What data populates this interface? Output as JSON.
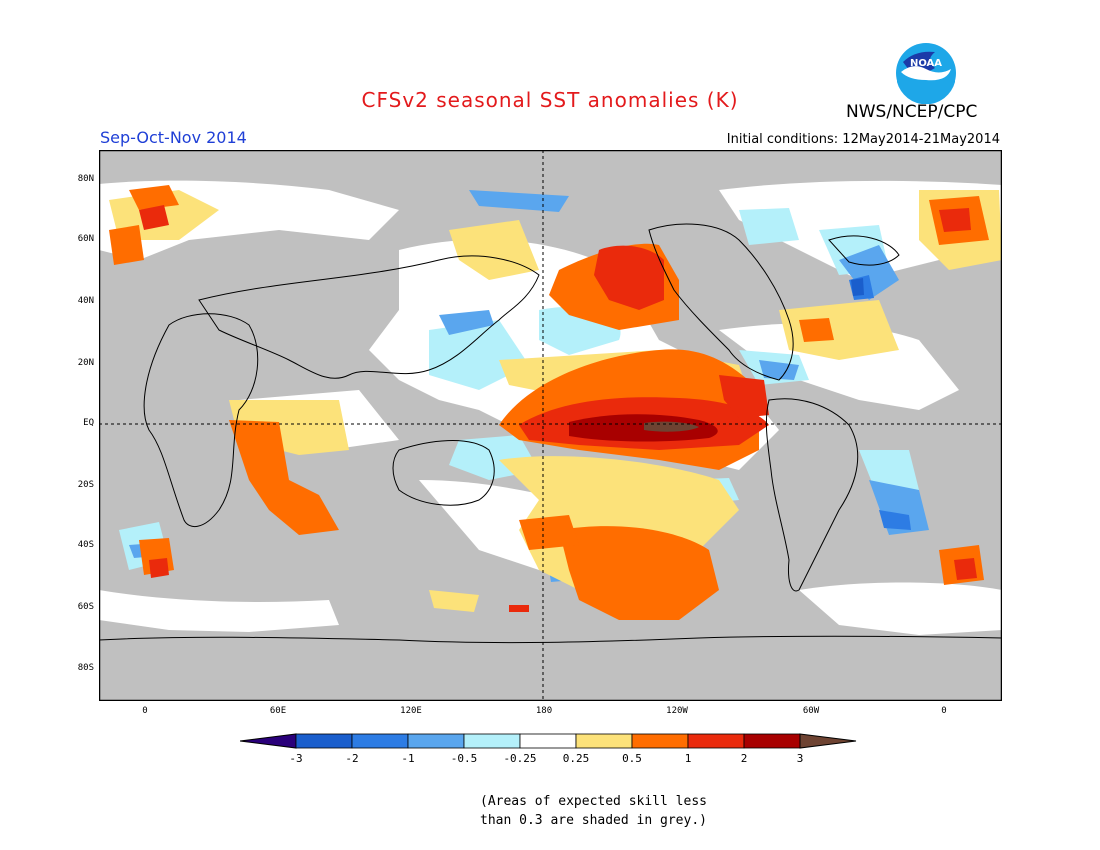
{
  "title": "CFSv2 seasonal SST anomalies (K)",
  "season": "Sep-Oct-Nov 2014",
  "initial_conditions": "Initial conditions: 12May2014-21May2014",
  "agency": "NWS/NCEP/CPC",
  "logo_text": "NOAA",
  "note_line1": "(Areas of expected skill less",
  "note_line2": "than 0.3 are shaded in grey.)",
  "latitude_labels": [
    "80N",
    "60N",
    "40N",
    "20N",
    "EQ",
    "20S",
    "40S",
    "60S",
    "80S"
  ],
  "longitude_labels": [
    "0",
    "60E",
    "120E",
    "180",
    "120W",
    "60W",
    "0"
  ],
  "colorbar": {
    "labels": [
      "-3",
      "-2",
      "-1",
      "-0.5",
      "-0.25",
      "0.25",
      "0.5",
      "1",
      "2",
      "3"
    ],
    "colors": [
      "#2a007a",
      "#1a5ecc",
      "#2d7ce4",
      "#5aa6ee",
      "#b4f0fa",
      "#ffffff",
      "#fce27a",
      "#ff6d00",
      "#ea2a0c",
      "#a80000",
      "#6e4332"
    ]
  },
  "colors": {
    "title": "#e31a1c",
    "season": "#1f3fd6",
    "no_skill_grey": "#c0c0c0",
    "logo_blue": "#2b86d6"
  }
}
